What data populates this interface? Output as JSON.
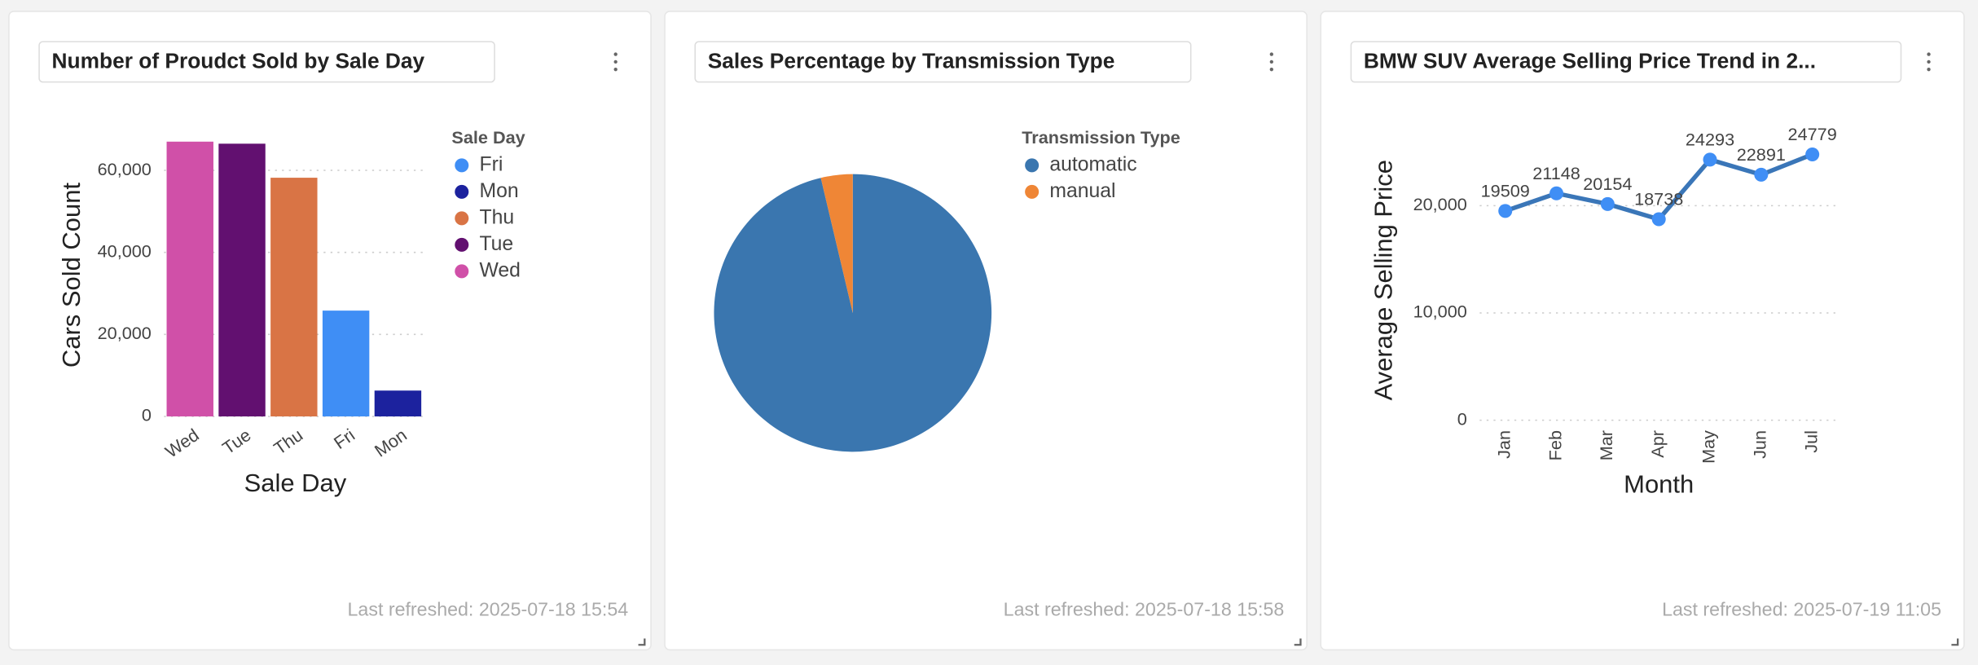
{
  "chart_data": [
    {
      "type": "bar",
      "title": "Number of Proudct Sold by Sale Day",
      "x_label": "Sale Day",
      "y_label": "Cars Sold Count",
      "legend_title": "Sale Day",
      "categories": [
        "Wed",
        "Tue",
        "Thu",
        "Fri",
        "Mon"
      ],
      "values": [
        67000,
        66500,
        58200,
        25800,
        6300
      ],
      "colors": [
        "#d050a8",
        "#621070",
        "#d97445",
        "#3f8ef5",
        "#1c229e"
      ],
      "ylim": [
        0,
        70000
      ],
      "yticks": [
        0,
        {
          "value": 20000,
          "label": "20,000"
        },
        {
          "value": 40000,
          "label": "40,000"
        },
        {
          "value": 60000,
          "label": "60,000"
        }
      ],
      "grid": true,
      "footer": "Last refreshed: 2025-07-18 15:54"
    },
    {
      "type": "pie",
      "title": "Sales Percentage by Transmission Type",
      "legend_title": "Transmission Type",
      "categories": [
        "automatic",
        "manual"
      ],
      "values": [
        96.3,
        3.7
      ],
      "colors": [
        "#3a76af",
        "#ef8636"
      ],
      "footer": "Last refreshed: 2025-07-18 15:58"
    },
    {
      "type": "line",
      "title": "BMW SUV Average Selling Price Trend in 2...",
      "x_label": "Month",
      "y_label": "Average Selling Price",
      "categories": [
        "Jan",
        "Feb",
        "Mar",
        "Apr",
        "May",
        "Jun",
        "Jul"
      ],
      "values": [
        19509,
        21148,
        20154,
        18738,
        24293,
        22891,
        24779
      ],
      "color": "#3a76b8",
      "point_color": "#3f8ef5",
      "ylim": [
        0,
        27000
      ],
      "yticks": [
        0,
        {
          "value": 10000,
          "label": "10,000"
        },
        {
          "value": 20000,
          "label": "20,000"
        }
      ],
      "grid": true,
      "footer": "Last refreshed: 2025-07-19 11:05"
    }
  ]
}
